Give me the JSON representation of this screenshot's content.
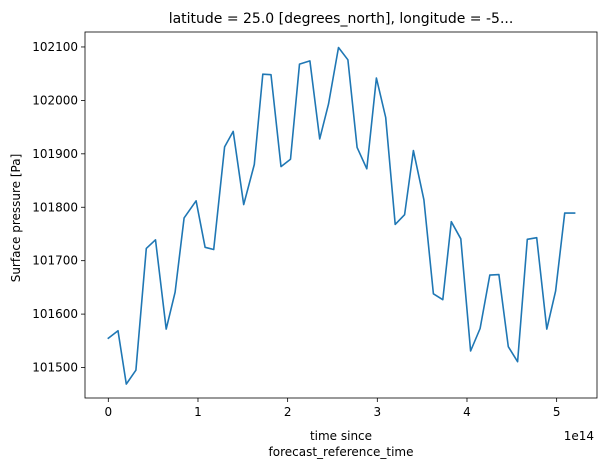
{
  "chart_data": {
    "type": "line",
    "title": "latitude = 25.0 [degrees_north], longitude = -5...",
    "xlabel_lines": [
      "time since",
      "forecast_reference_time"
    ],
    "ylabel": "Surface pressure [Pa]",
    "x_offset_label": "1e14",
    "x_tick_values": [
      0,
      1,
      2,
      3,
      4,
      5
    ],
    "x_tick_labels": [
      "0",
      "1",
      "2",
      "3",
      "4",
      "5"
    ],
    "y_tick_values": [
      101500,
      101600,
      101700,
      101800,
      101900,
      102000,
      102100
    ],
    "y_tick_labels": [
      "101500",
      "101600",
      "101700",
      "101800",
      "101900",
      "102000",
      "102100"
    ],
    "xlim": [
      -0.26,
      5.45
    ],
    "ylim": [
      101443,
      102128
    ],
    "grid": false,
    "series": [
      {
        "color": "#1f77b4",
        "x": [
          0.0,
          0.108,
          0.201,
          0.308,
          0.424,
          0.526,
          0.646,
          0.745,
          0.845,
          0.979,
          1.079,
          1.175,
          1.297,
          1.393,
          1.51,
          1.628,
          1.723,
          1.814,
          1.926,
          2.032,
          2.132,
          2.248,
          2.357,
          2.456,
          2.567,
          2.672,
          2.774,
          2.883,
          2.99,
          3.094,
          3.2,
          3.304,
          3.402,
          3.52,
          3.625,
          3.73,
          3.825,
          3.931,
          4.04,
          4.146,
          4.255,
          4.356,
          4.461,
          4.565,
          4.673,
          4.777,
          4.89,
          4.988,
          5.09,
          5.2
        ],
        "y": [
          101555,
          101569,
          101469,
          101495,
          101723,
          101739,
          101572,
          101641,
          101780,
          101812,
          101725,
          101721,
          101913,
          101942,
          101805,
          101880,
          102049,
          102048,
          101876,
          101890,
          102068,
          102074,
          101928,
          101993,
          102099,
          102076,
          101912,
          101872,
          102042,
          101968,
          101768,
          101786,
          101906,
          101814,
          101638,
          101627,
          101773,
          101741,
          101531,
          101573,
          101673,
          101674,
          101539,
          101511,
          101740,
          101743,
          101572,
          101643,
          101789,
          101789
        ]
      }
    ]
  }
}
